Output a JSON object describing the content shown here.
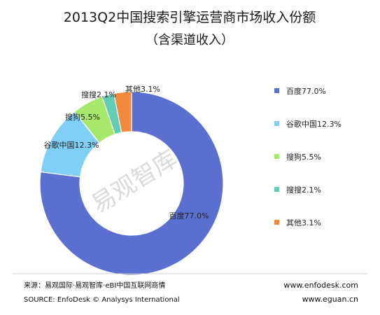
{
  "chart_data": {
    "type": "pie",
    "title": "2013Q2中国搜索引擎运营商市场收入份额",
    "subtitle": "（含渠道收入）",
    "categories": [
      "百度",
      "谷歌中国",
      "搜狗",
      "搜搜",
      "其他"
    ],
    "values": [
      77.0,
      12.3,
      5.5,
      2.1,
      3.1
    ],
    "value_labels": [
      "百度77.0%",
      "谷歌中国12.3%",
      "搜狗5.5%",
      "搜搜2.1%",
      "其他3.1%"
    ],
    "colors": [
      "#5b6fd1",
      "#7fcff6",
      "#a6e86b",
      "#63ccb4",
      "#f28a3d"
    ],
    "legend_position": "right"
  },
  "watermark": "易观智库",
  "footer": {
    "source_cn": "来源：易观国际·易观智库·eBI中国互联网商情",
    "source_en": "SOURCE: EnfoDesk © Analysys International",
    "url1": "www.enfodesk.com",
    "url2": "www.eguan.cn"
  }
}
